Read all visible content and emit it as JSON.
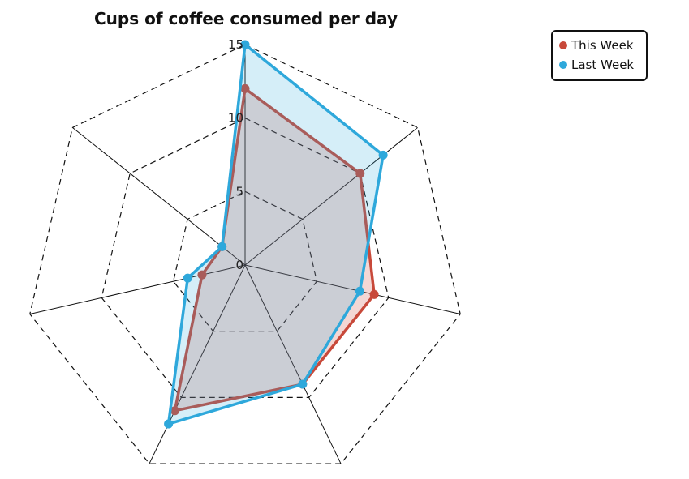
{
  "chart_data": {
    "type": "radar",
    "title": "Cups of coffee consumed per day",
    "r_ticks": [
      "0",
      "5",
      "10",
      "15"
    ],
    "r_range": [
      0,
      15
    ],
    "axis_count": 7,
    "grid": true,
    "legend_position": "top-right",
    "series": [
      {
        "name": "This Week",
        "color": "#c8493a",
        "fill": "rgba(200,73,58,0.22)",
        "values": [
          12,
          10,
          9,
          9,
          11,
          3,
          2
        ]
      },
      {
        "name": "Last Week",
        "color": "#2ea8db",
        "fill": "rgba(46,168,219,0.20)",
        "values": [
          15,
          12,
          8,
          9,
          12,
          4,
          2
        ]
      }
    ]
  }
}
